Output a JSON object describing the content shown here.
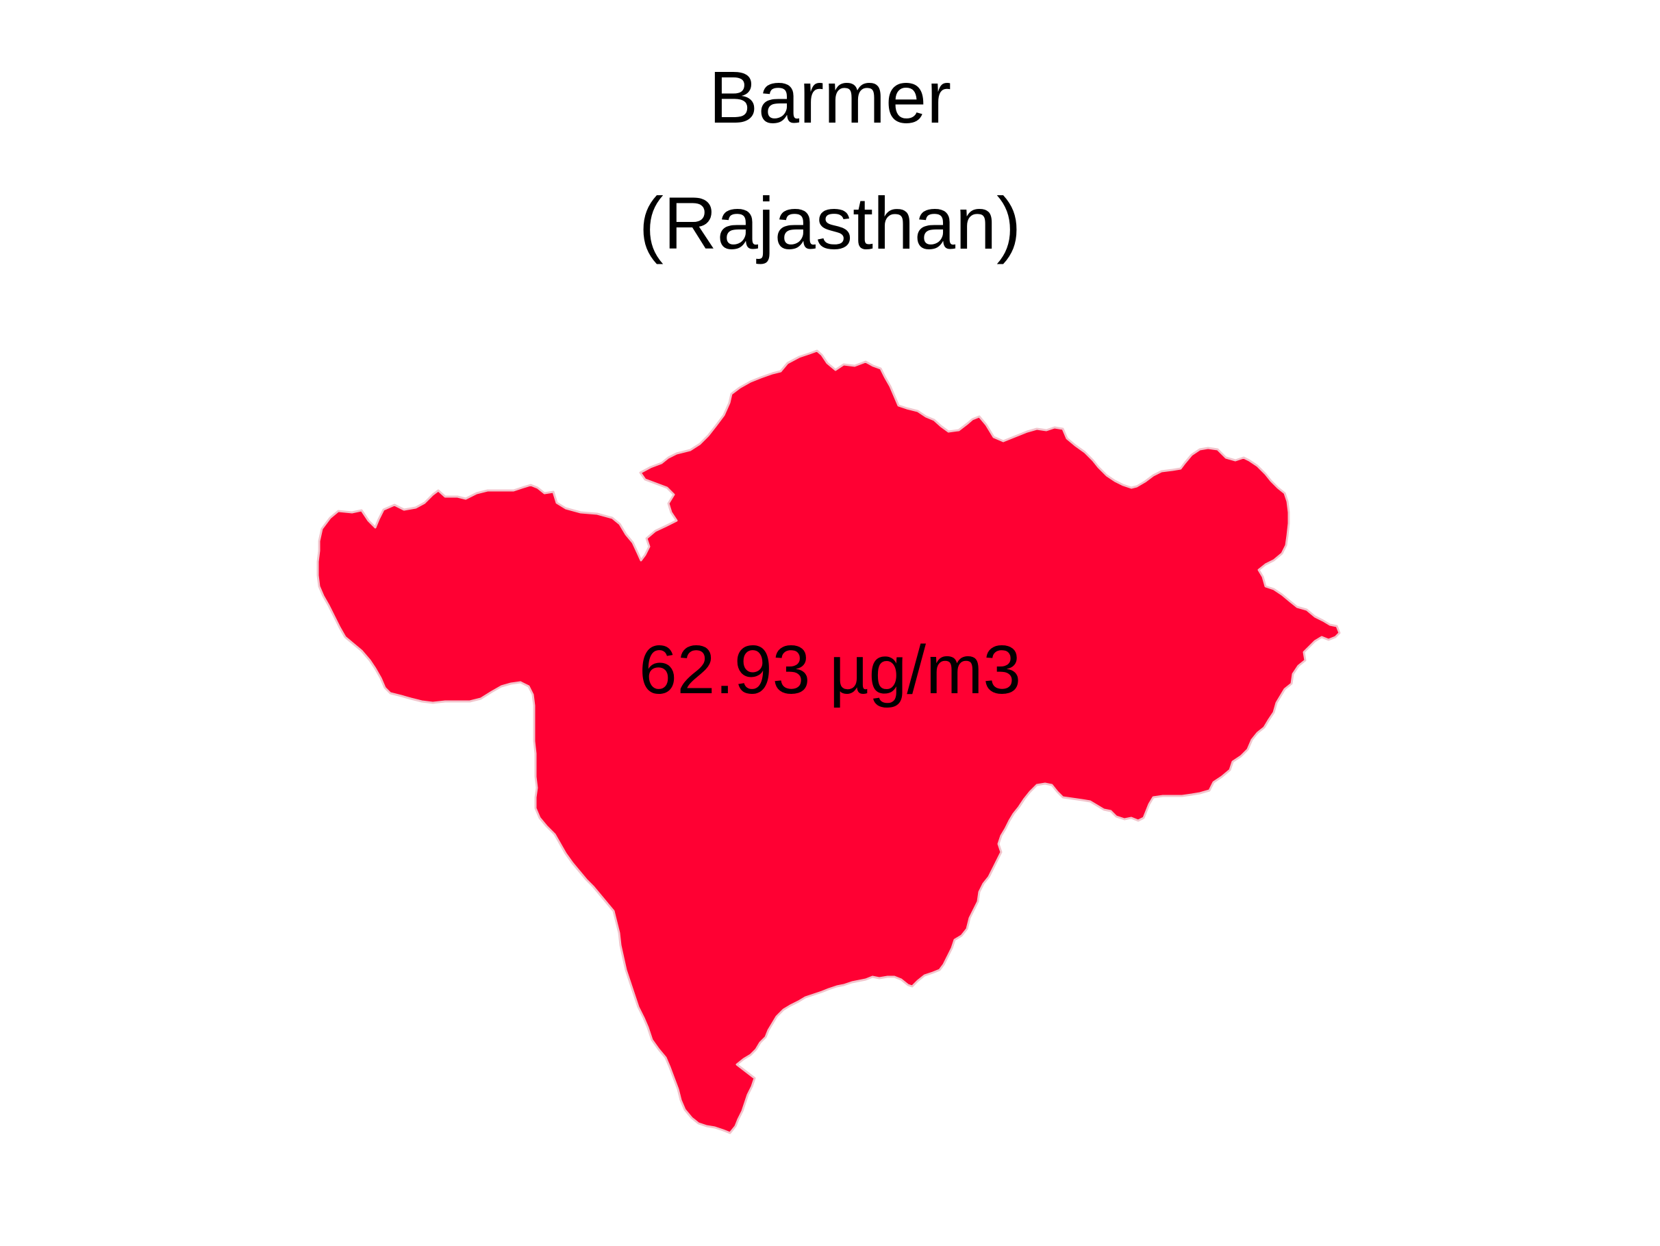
{
  "map": {
    "district": "Barmer",
    "state": "(Rajasthan)",
    "value_label": "62.93 µg/m3",
    "fill_color": "#ff0033",
    "border_color": "#f2c4cc",
    "background_color": "#ffffff"
  }
}
